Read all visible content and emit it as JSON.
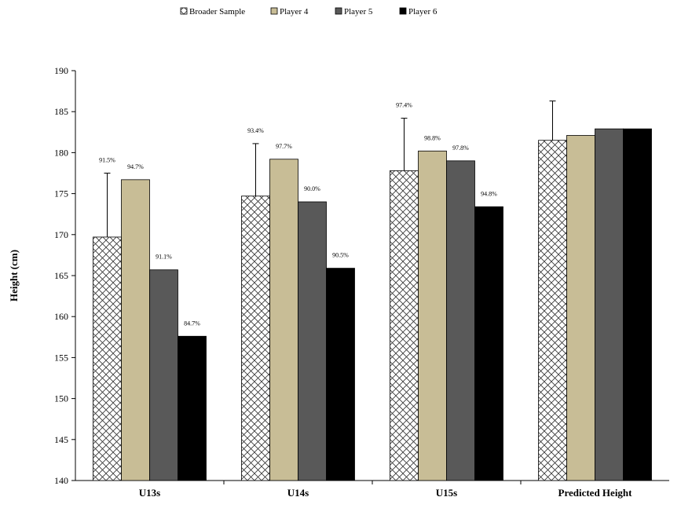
{
  "chart_data": {
    "type": "bar",
    "title": "",
    "xlabel": "",
    "ylabel": "Height (cm)",
    "ylim": [
      140,
      190
    ],
    "yticks": [
      140,
      145,
      150,
      155,
      160,
      165,
      170,
      175,
      180,
      185,
      190
    ],
    "grid": false,
    "legend_position": "top",
    "categories": [
      "U13s",
      "U14s",
      "U15s",
      "Predicted Height"
    ],
    "series": [
      {
        "name": "Broader Sample",
        "fill": "crosshatch",
        "values": [
          169.7,
          174.7,
          177.8,
          181.5
        ],
        "errors": [
          7.8,
          6.4,
          6.4,
          4.8
        ],
        "labels": [
          "91.5%",
          "93.4%",
          "97.4%",
          ""
        ]
      },
      {
        "name": "Player 4",
        "color": "#c8bd96",
        "values": [
          176.7,
          179.2,
          180.2,
          182.1
        ],
        "labels": [
          "94.7%",
          "97.7%",
          "98.8%",
          ""
        ]
      },
      {
        "name": "Player 5",
        "color": "#595959",
        "values": [
          165.7,
          174.0,
          179.0,
          182.9
        ],
        "labels": [
          "91.1%",
          "90.0%",
          "97.8%",
          ""
        ]
      },
      {
        "name": "Player 6",
        "color": "#000000",
        "values": [
          157.6,
          165.9,
          173.4,
          182.9
        ],
        "labels": [
          "84.7%",
          "90.5%",
          "94.8%",
          ""
        ]
      }
    ]
  }
}
